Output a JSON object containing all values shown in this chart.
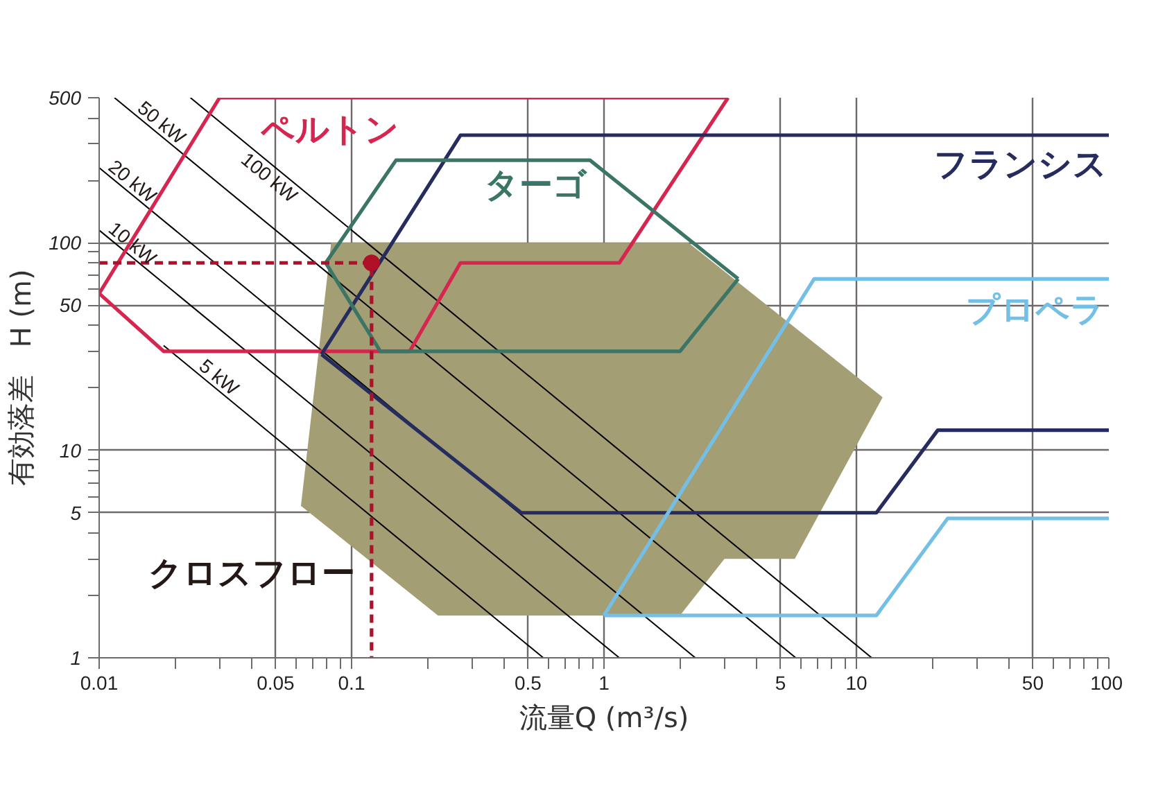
{
  "chart_data": {
    "type": "line",
    "xlabel": "流量Q (m³/s)",
    "ylabel": "有効落差　H (m)",
    "log": "xy",
    "grid": true,
    "xlim": [
      0.01,
      100
    ],
    "ylim": [
      1,
      500
    ],
    "xticks": [
      0.01,
      {
        "value": 0.02,
        "label": null
      },
      {
        "value": 0.03,
        "label": null
      },
      {
        "value": 0.04,
        "label": null
      },
      0.05,
      {
        "value": 0.06,
        "label": null
      },
      {
        "value": 0.07,
        "label": null
      },
      {
        "value": 0.08,
        "label": null
      },
      {
        "value": 0.09,
        "label": null
      },
      0.1,
      {
        "value": 0.2,
        "label": null
      },
      {
        "value": 0.3,
        "label": null
      },
      {
        "value": 0.4,
        "label": null
      },
      0.5,
      {
        "value": 0.6,
        "label": null
      },
      {
        "value": 0.7,
        "label": null
      },
      {
        "value": 0.8,
        "label": null
      },
      {
        "value": 0.9,
        "label": null
      },
      1,
      {
        "value": 2,
        "label": null
      },
      {
        "value": 3,
        "label": null
      },
      {
        "value": 4,
        "label": null
      },
      5,
      {
        "value": 6,
        "label": null
      },
      {
        "value": 7,
        "label": null
      },
      {
        "value": 8,
        "label": null
      },
      {
        "value": 9,
        "label": null
      },
      10,
      {
        "value": 20,
        "label": null
      },
      {
        "value": 30,
        "label": null
      },
      {
        "value": 40,
        "label": null
      },
      50,
      {
        "value": 60,
        "label": null
      },
      {
        "value": 70,
        "label": null
      },
      {
        "value": 80,
        "label": null
      },
      {
        "value": 90,
        "label": null
      },
      100
    ],
    "yticks": [
      1,
      {
        "value": 2,
        "label": null
      },
      {
        "value": 3,
        "label": null
      },
      {
        "value": 4,
        "label": null
      },
      5,
      {
        "value": 6,
        "label": null
      },
      {
        "value": 7,
        "label": null
      },
      {
        "value": 8,
        "label": null
      },
      {
        "value": 9,
        "label": null
      },
      10,
      {
        "value": 20,
        "label": null
      },
      {
        "value": 30,
        "label": null
      },
      {
        "value": 40,
        "label": null
      },
      50,
      {
        "value": 60,
        "label": null
      },
      {
        "value": 70,
        "label": null
      },
      {
        "value": 80,
        "label": null
      },
      {
        "value": 90,
        "label": null
      },
      100,
      {
        "value": 200,
        "label": null
      },
      {
        "value": 300,
        "label": null
      },
      {
        "value": 400,
        "label": null
      },
      500
    ],
    "series": [
      {
        "type": "area",
        "name": "クロスフロー",
        "color": "#a39e74",
        "x": [
          0.063,
          0.083,
          2.16,
          12.7,
          5.7,
          3.0,
          2.0,
          0.22,
          0.063
        ],
        "values": [
          5.4,
          100,
          100,
          18,
          3,
          3,
          1.6,
          1.6,
          5.4
        ]
      },
      {
        "color": "#000000",
        "x": [
          0.023,
          11.5
        ],
        "values": [
          500,
          1
        ]
      },
      {
        "color": "#000000",
        "x": [
          0.0115,
          5.75
        ],
        "values": [
          500,
          1
        ]
      },
      {
        "color": "#000000",
        "x": [
          0.01,
          2.3
        ],
        "values": [
          230,
          1
        ]
      },
      {
        "color": "#000000",
        "x": [
          0.01,
          1.15
        ],
        "values": [
          115,
          1
        ]
      },
      {
        "color": "#000000",
        "x": [
          0.018,
          0.575
        ],
        "values": [
          32,
          1
        ]
      },
      {
        "name": "ペルトン",
        "color": "#d6264f",
        "x": [
          0.01,
          0.03,
          3.1
        ],
        "values": [
          57,
          500,
          500
        ]
      },
      {
        "color": "#d6264f",
        "x": [
          0.01,
          0.018,
          0.17,
          0.27,
          1.15,
          3.1
        ],
        "values": [
          57,
          30,
          30,
          80,
          80,
          500
        ]
      },
      {
        "name": "フランシス",
        "color": "#262d5e",
        "x": [
          0.076,
          0.27,
          100
        ],
        "values": [
          29,
          330,
          330
        ]
      },
      {
        "color": "#262d5e",
        "x": [
          0.076,
          0.47,
          12,
          21,
          100
        ],
        "values": [
          29,
          5,
          5,
          12.5,
          12.5
        ]
      },
      {
        "name": "ターゴ",
        "color": "#3a7566",
        "x": [
          0.079,
          0.15,
          0.88,
          3.4
        ],
        "values": [
          80,
          250,
          250,
          67
        ]
      },
      {
        "color": "#3a7566",
        "x": [
          0.079,
          0.13,
          2.0,
          3.4
        ],
        "values": [
          80,
          30,
          30,
          67
        ]
      },
      {
        "name": "プロペラ",
        "color": "#74bfe6",
        "x": [
          1.0,
          6.8,
          100
        ],
        "values": [
          1.6,
          67,
          67
        ]
      },
      {
        "color": "#74bfe6",
        "x": [
          1.0,
          12,
          23,
          100
        ],
        "values": [
          1.6,
          1.6,
          4.7,
          4.7
        ]
      },
      {
        "color": "#b0102a",
        "line_style": "dashed",
        "x": [
          0.01,
          0.12,
          0.12
        ],
        "values": [
          80,
          80,
          1
        ]
      },
      {
        "type": "scatter",
        "color": "#b0102a",
        "marker": "circle",
        "x": [
          0.12
        ],
        "values": [
          80
        ]
      }
    ],
    "annotations": [
      {
        "text": "100 kW",
        "x": 0.04,
        "y": 287
      },
      {
        "text": "50 kW",
        "x": 0.0137,
        "y": 420
      },
      {
        "text": "20 kW",
        "x": 0.0105,
        "y": 219
      },
      {
        "text": "10 kW",
        "x": 0.0105,
        "y": 110
      },
      {
        "text": "5 kW",
        "x": 0.024,
        "y": 24
      }
    ]
  }
}
